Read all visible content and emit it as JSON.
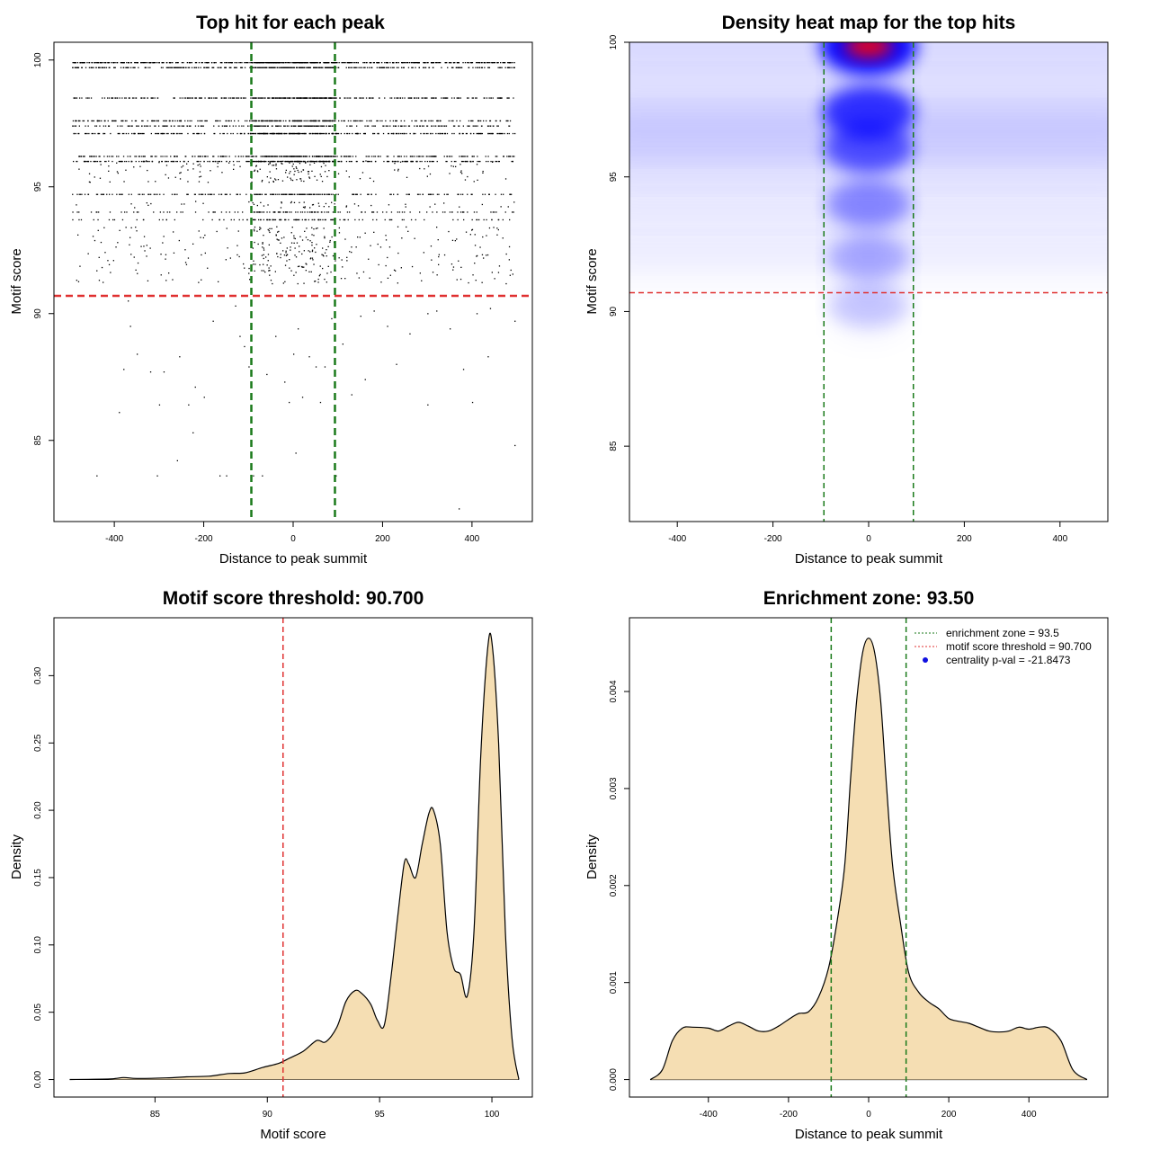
{
  "chart_data": [
    {
      "id": "scatter",
      "type": "scatter",
      "title": "Top hit for each peak",
      "xlabel": "Distance to peak summit",
      "ylabel": "Motif score",
      "xlim": [
        -535,
        535
      ],
      "ylim": [
        81.8,
        100.7
      ],
      "xticks": [
        -400,
        -200,
        0,
        200,
        400
      ],
      "yticks": [
        85,
        90,
        95,
        100
      ],
      "score_levels": [
        {
          "y": 99.9,
          "n": 520
        },
        {
          "y": 99.7,
          "n": 400
        },
        {
          "y": 98.5,
          "n": 360
        },
        {
          "y": 97.6,
          "n": 300
        },
        {
          "y": 97.4,
          "n": 260
        },
        {
          "y": 97.1,
          "n": 340
        },
        {
          "y": 96.2,
          "n": 320
        },
        {
          "y": 96.0,
          "n": 340
        },
        {
          "y": 94.7,
          "n": 220
        },
        {
          "y": 94.0,
          "n": 130
        },
        {
          "y": 93.7,
          "n": 120
        }
      ],
      "scattered_points": [
        [
          -470,
          90.7
        ],
        [
          -440,
          83.6
        ],
        [
          -390,
          86.1
        ],
        [
          -380,
          87.8
        ],
        [
          -365,
          89.5
        ],
        [
          -350,
          88.4
        ],
        [
          -320,
          87.7
        ],
        [
          -305,
          83.6
        ],
        [
          -300,
          86.4
        ],
        [
          -290,
          87.7
        ],
        [
          -260,
          84.2
        ],
        [
          -255,
          88.3
        ],
        [
          -235,
          86.4
        ],
        [
          -220,
          87.1
        ],
        [
          -200,
          86.7
        ],
        [
          -180,
          89.7
        ],
        [
          -165,
          83.6
        ],
        [
          -150,
          83.6
        ],
        [
          -130,
          90.3
        ],
        [
          -120,
          89.1
        ],
        [
          -110,
          88.7
        ],
        [
          -100,
          87.9
        ],
        [
          -90,
          83.6
        ],
        [
          -70,
          83.6
        ],
        [
          -60,
          87.6
        ],
        [
          -40,
          89.1
        ],
        [
          -20,
          87.3
        ],
        [
          -10,
          86.5
        ],
        [
          0,
          88.4
        ],
        [
          5,
          84.5
        ],
        [
          10,
          89.4
        ],
        [
          20,
          86.7
        ],
        [
          35,
          88.3
        ],
        [
          50,
          87.9
        ],
        [
          60,
          86.5
        ],
        [
          70,
          87.9
        ],
        [
          85,
          89.8
        ],
        [
          95,
          83.6
        ],
        [
          110,
          88.8
        ],
        [
          150,
          89.9
        ],
        [
          160,
          87.4
        ],
        [
          180,
          90.1
        ],
        [
          210,
          89.5
        ],
        [
          260,
          89.2
        ],
        [
          300,
          86.4
        ],
        [
          300,
          90.0
        ],
        [
          320,
          90.1
        ],
        [
          350,
          89.4
        ],
        [
          370,
          82.3
        ],
        [
          380,
          87.8
        ],
        [
          400,
          86.5
        ],
        [
          410,
          90.0
        ],
        [
          435,
          88.3
        ],
        [
          440,
          90.2
        ],
        [
          495,
          84.8
        ],
        [
          495,
          89.7
        ],
        [
          -370,
          90.5
        ],
        [
          230,
          88.0
        ],
        [
          -225,
          85.3
        ],
        [
          130,
          86.8
        ]
      ],
      "vlines": [
        -93.5,
        93.5
      ],
      "hline": 90.7
    },
    {
      "id": "heatmap",
      "type": "heatmap",
      "title": "Density heat map for the top hits",
      "xlabel": "Distance to peak summit",
      "ylabel": "Motif score",
      "xlim": [
        -500,
        500
      ],
      "ylim": [
        82.2,
        100
      ],
      "xticks": [
        -400,
        -200,
        0,
        200,
        400
      ],
      "yticks": [
        85,
        90,
        95,
        100
      ],
      "hotspots": [
        {
          "x": 0,
          "y": 99.85,
          "intensity": 1.0
        },
        {
          "x": 0,
          "y": 97.4,
          "intensity": 0.78
        },
        {
          "x": 0,
          "y": 96.1,
          "intensity": 0.6
        },
        {
          "x": 0,
          "y": 94.0,
          "intensity": 0.35
        },
        {
          "x": 0,
          "y": 92.0,
          "intensity": 0.2
        },
        {
          "x": 0,
          "y": 90.2,
          "intensity": 0.12
        }
      ],
      "vlines": [
        -93.5,
        93.5
      ],
      "hline": 90.7
    },
    {
      "id": "score-density",
      "type": "area",
      "title": "Motif score threshold: 90.700",
      "xlabel": "Motif score",
      "ylabel": "Density",
      "xlim": [
        80.5,
        101.8
      ],
      "ylim": [
        -0.013,
        0.343
      ],
      "xticks": [
        85,
        90,
        95,
        100
      ],
      "yticks": [
        0.0,
        0.05,
        0.1,
        0.15,
        0.2,
        0.25,
        0.3
      ],
      "ytick_labels": [
        "0.00",
        "0.05",
        "0.10",
        "0.15",
        "0.20",
        "0.25",
        "0.30"
      ],
      "x": [
        81.2,
        83.0,
        83.6,
        84.2,
        85.5,
        86.4,
        87.4,
        88.3,
        89.0,
        89.8,
        90.5,
        91.0,
        91.6,
        92.2,
        92.6,
        93.1,
        93.5,
        93.9,
        94.2,
        94.6,
        94.9,
        95.2,
        95.5,
        95.8,
        96.1,
        96.3,
        96.6,
        96.9,
        97.2,
        97.4,
        97.7,
        98.0,
        98.3,
        98.6,
        98.9,
        99.2,
        99.5,
        99.8,
        100.0,
        100.3,
        100.6,
        100.9,
        101.2
      ],
      "y": [
        0.0,
        0.0005,
        0.0015,
        0.0008,
        0.0012,
        0.002,
        0.0025,
        0.0045,
        0.005,
        0.009,
        0.012,
        0.016,
        0.021,
        0.029,
        0.028,
        0.039,
        0.058,
        0.066,
        0.064,
        0.056,
        0.044,
        0.04,
        0.075,
        0.12,
        0.161,
        0.16,
        0.15,
        0.175,
        0.198,
        0.2,
        0.175,
        0.11,
        0.083,
        0.078,
        0.062,
        0.11,
        0.24,
        0.318,
        0.325,
        0.25,
        0.11,
        0.03,
        0.0
      ],
      "vline": 90.7,
      "fill": "#f5deb3"
    },
    {
      "id": "enrichment",
      "type": "area",
      "title": "Enrichment zone: 93.50",
      "xlabel": "Distance to peak summit",
      "ylabel": "Density",
      "xlim": [
        -597,
        597
      ],
      "ylim": [
        -0.00018,
        0.00476
      ],
      "xticks": [
        -400,
        -200,
        0,
        200,
        400
      ],
      "yticks": [
        0.0,
        0.001,
        0.002,
        0.003,
        0.004
      ],
      "ytick_labels": [
        "0.000",
        "0.001",
        "0.002",
        "0.003",
        "0.004"
      ],
      "x": [
        -545,
        -515,
        -490,
        -465,
        -440,
        -400,
        -375,
        -350,
        -325,
        -300,
        -275,
        -250,
        -225,
        -200,
        -175,
        -150,
        -125,
        -100,
        -80,
        -60,
        -45,
        -30,
        -15,
        0,
        15,
        30,
        45,
        60,
        80,
        100,
        125,
        150,
        175,
        200,
        225,
        250,
        275,
        300,
        325,
        350,
        375,
        400,
        425,
        450,
        480,
        510,
        545
      ],
      "y": [
        0.0,
        0.0001,
        0.0004,
        0.00053,
        0.00054,
        0.00053,
        0.0005,
        0.00055,
        0.00059,
        0.00055,
        0.0005,
        0.0005,
        0.00055,
        0.00062,
        0.00068,
        0.0007,
        0.00085,
        0.00115,
        0.0016,
        0.0022,
        0.0031,
        0.0039,
        0.0044,
        0.00455,
        0.0044,
        0.0039,
        0.003,
        0.0022,
        0.0016,
        0.0011,
        0.0009,
        0.0008,
        0.00073,
        0.00063,
        0.0006,
        0.00058,
        0.00054,
        0.0005,
        0.00049,
        0.0005,
        0.00054,
        0.00052,
        0.00054,
        0.00053,
        0.0004,
        0.0001,
        0.0
      ],
      "vlines": [
        -93.5,
        93.5
      ],
      "fill": "#f5deb3",
      "legend": {
        "position": "top-right",
        "entries": [
          {
            "label": "enrichment zone = 93.5",
            "color": "#1a7a1a",
            "kind": "line"
          },
          {
            "label": "motif score threshold = 90.700",
            "color": "#e03030",
            "kind": "line"
          },
          {
            "label": "centrality p-val = -21.8473",
            "color": "#1010e0",
            "kind": "point"
          }
        ]
      }
    }
  ]
}
